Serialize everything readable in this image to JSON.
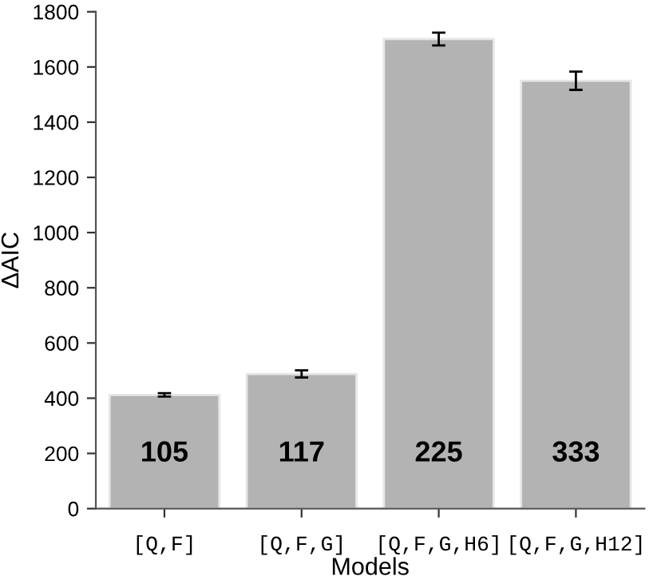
{
  "chart_data": {
    "type": "bar",
    "xlabel": "Models",
    "ylabel": "ΔAIC",
    "categories": [
      "[Q,F]",
      "[Q,F,G]",
      "[Q,F,G,H6]",
      "[Q,F,G,H12]"
    ],
    "values": [
      412,
      488,
      1701,
      1550
    ],
    "errors": [
      6,
      13,
      23,
      33
    ],
    "color": "#b3b3b3",
    "ylim": [
      0,
      1800
    ],
    "yticks": [
      0,
      200,
      400,
      600,
      800,
      1000,
      1200,
      1400,
      1600,
      1800
    ],
    "grid": false,
    "annotations": [
      "105",
      "117",
      "225",
      "333"
    ]
  }
}
